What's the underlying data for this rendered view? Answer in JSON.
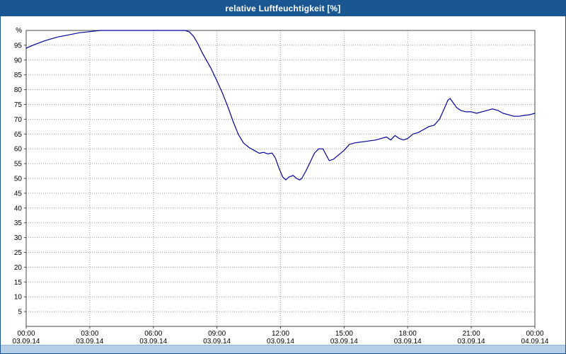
{
  "title": "relative Luftfeuchtigkeit [%]",
  "chart_data": {
    "type": "line",
    "title": "relative Luftfeuchtigkeit [%]",
    "xlabel": "",
    "ylabel": "%",
    "ylim": [
      0,
      100
    ],
    "x_max": 24,
    "grid": true,
    "y_ticks": [
      95,
      90,
      85,
      80,
      75,
      70,
      65,
      60,
      55,
      50,
      45,
      40,
      35,
      30,
      25,
      20,
      15,
      10,
      5
    ],
    "x_ticks": [
      {
        "h": 0,
        "time": "00:00",
        "date": "03.09.14"
      },
      {
        "h": 3,
        "time": "03:00",
        "date": "03.09.14"
      },
      {
        "h": 6,
        "time": "06:00",
        "date": "03.09.14"
      },
      {
        "h": 9,
        "time": "09:00",
        "date": "03.09.14"
      },
      {
        "h": 12,
        "time": "12:00",
        "date": "03.09.14"
      },
      {
        "h": 15,
        "time": "15:00",
        "date": "03.09.14"
      },
      {
        "h": 18,
        "time": "18:00",
        "date": "03.09.14"
      },
      {
        "h": 21,
        "time": "21:00",
        "date": "03.09.14"
      },
      {
        "h": 24,
        "time": "00:00",
        "date": "04.09.14"
      }
    ],
    "colors": {
      "line": "#000099",
      "grid": "#9a9a9a",
      "plot_border": "#4a4a4a",
      "axis_text": "#000000",
      "titlebar_bg": "#1a5691",
      "footer_bg": "#b5cfe8"
    },
    "series": [
      {
        "name": "relative Luftfeuchtigkeit",
        "unit": "%",
        "points": [
          [
            0,
            94
          ],
          [
            0.25,
            94.8
          ],
          [
            0.5,
            95.5
          ],
          [
            0.75,
            96.2
          ],
          [
            1,
            96.8
          ],
          [
            1.25,
            97.3
          ],
          [
            1.5,
            97.8
          ],
          [
            2,
            98.5
          ],
          [
            2.5,
            99.2
          ],
          [
            3,
            99.6
          ],
          [
            3.5,
            100
          ],
          [
            4,
            100
          ],
          [
            4.5,
            100
          ],
          [
            5,
            100
          ],
          [
            5.5,
            100
          ],
          [
            6,
            100
          ],
          [
            6.5,
            100
          ],
          [
            7,
            100
          ],
          [
            7.5,
            100
          ],
          [
            7.7,
            99.5
          ],
          [
            7.9,
            98
          ],
          [
            8.1,
            95.5
          ],
          [
            8.3,
            92.5
          ],
          [
            8.5,
            90
          ],
          [
            8.7,
            87.5
          ],
          [
            9,
            83
          ],
          [
            9.25,
            79
          ],
          [
            9.5,
            74.5
          ],
          [
            9.75,
            69.5
          ],
          [
            10,
            65
          ],
          [
            10.25,
            62
          ],
          [
            10.5,
            60.5
          ],
          [
            10.75,
            59.5
          ],
          [
            11,
            58.5
          ],
          [
            11.2,
            58.8
          ],
          [
            11.4,
            58.3
          ],
          [
            11.6,
            58.6
          ],
          [
            11.75,
            57
          ],
          [
            11.9,
            54
          ],
          [
            12.1,
            50.5
          ],
          [
            12.25,
            49.5
          ],
          [
            12.4,
            50.5
          ],
          [
            12.6,
            51
          ],
          [
            12.75,
            50
          ],
          [
            12.9,
            49.5
          ],
          [
            13,
            50
          ],
          [
            13.2,
            52.5
          ],
          [
            13.4,
            55.5
          ],
          [
            13.6,
            58.5
          ],
          [
            13.8,
            60
          ],
          [
            14,
            60
          ],
          [
            14.15,
            58
          ],
          [
            14.3,
            56
          ],
          [
            14.5,
            56.5
          ],
          [
            14.75,
            58
          ],
          [
            15,
            59.5
          ],
          [
            15.25,
            61.5
          ],
          [
            15.5,
            62
          ],
          [
            16,
            62.5
          ],
          [
            16.5,
            63
          ],
          [
            16.75,
            63.5
          ],
          [
            17,
            64
          ],
          [
            17.2,
            63
          ],
          [
            17.4,
            64.5
          ],
          [
            17.6,
            63.5
          ],
          [
            17.8,
            63
          ],
          [
            18,
            63.5
          ],
          [
            18.25,
            65
          ],
          [
            18.5,
            65.5
          ],
          [
            18.75,
            66.5
          ],
          [
            19,
            67.5
          ],
          [
            19.25,
            68
          ],
          [
            19.5,
            70
          ],
          [
            19.75,
            74
          ],
          [
            19.9,
            76.5
          ],
          [
            20,
            77
          ],
          [
            20.15,
            75.5
          ],
          [
            20.3,
            74
          ],
          [
            20.5,
            73
          ],
          [
            20.75,
            72.5
          ],
          [
            21,
            72.5
          ],
          [
            21.25,
            72
          ],
          [
            21.5,
            72.5
          ],
          [
            21.75,
            73
          ],
          [
            22,
            73.5
          ],
          [
            22.25,
            73
          ],
          [
            22.5,
            72
          ],
          [
            22.75,
            71.5
          ],
          [
            23,
            71
          ],
          [
            23.25,
            71
          ],
          [
            23.5,
            71.3
          ],
          [
            23.75,
            71.5
          ],
          [
            24,
            72
          ]
        ]
      }
    ]
  }
}
